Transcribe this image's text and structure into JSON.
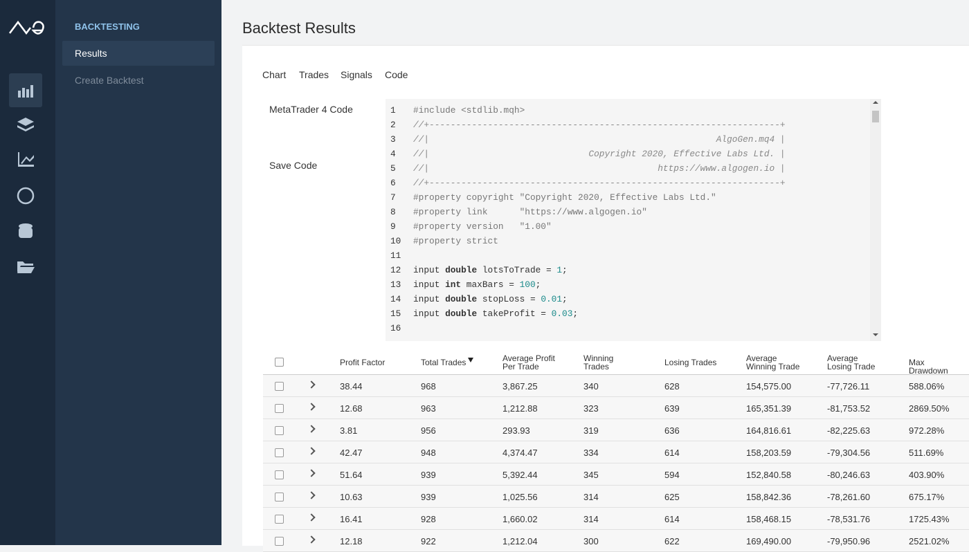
{
  "sidebar": {
    "section": "BACKTESTING",
    "items": [
      "Results",
      "Create Backtest"
    ],
    "active": 0
  },
  "header": {
    "title": "Backtest Results"
  },
  "tabs": {
    "items": [
      "Chart",
      "Trades",
      "Signals",
      "Code"
    ],
    "active": 3
  },
  "side_menu": {
    "items": [
      "MetaTrader 4 Code",
      "Save Code"
    ],
    "active": 0
  },
  "code": {
    "lines": [
      {
        "n": 1,
        "text": "#include <stdlib.mqh>"
      },
      {
        "n": 2,
        "text": "//+------------------------------------------------------------------+"
      },
      {
        "n": 3,
        "text": "//|                                                      AlgoGen.mq4 |"
      },
      {
        "n": 4,
        "text": "//|                              Copyright 2020, Effective Labs Ltd. |"
      },
      {
        "n": 5,
        "text": "//|                                           https://www.algogen.io |"
      },
      {
        "n": 6,
        "text": "//+------------------------------------------------------------------+"
      },
      {
        "n": 7,
        "text": "#property copyright \"Copyright 2020, Effective Labs Ltd.\""
      },
      {
        "n": 8,
        "text": "#property link      \"https://www.algogen.io\""
      },
      {
        "n": 9,
        "text": "#property version   \"1.00\""
      },
      {
        "n": 10,
        "text": "#property strict"
      },
      {
        "n": 11
      },
      {
        "n": 12,
        "text": "input double lotsToTrade = 1;"
      },
      {
        "n": 13,
        "text": "input int maxBars = 100;"
      },
      {
        "n": 14,
        "text": "input double stopLoss = 0.01;"
      },
      {
        "n": 15,
        "text": "input double takeProfit = 0.03;"
      },
      {
        "n": 16
      }
    ]
  },
  "table": {
    "columns": [
      "Profit Factor",
      "Total Trades",
      "Average Profit Per Trade",
      "Winning Trades",
      "Losing Trades",
      "Average Winning Trade",
      "Average Losing Trade",
      "Max Drawdown"
    ],
    "sorted_column": 1,
    "rows": [
      [
        "38.44",
        "968",
        "3,867.25",
        "340",
        "628",
        "154,575.00",
        "-77,726.11",
        "588.06%"
      ],
      [
        "12.68",
        "963",
        "1,212.88",
        "323",
        "639",
        "165,351.39",
        "-81,753.52",
        "2869.50%"
      ],
      [
        "3.81",
        "956",
        "293.93",
        "319",
        "636",
        "164,816.61",
        "-82,225.63",
        "972.28%"
      ],
      [
        "42.47",
        "948",
        "4,374.47",
        "334",
        "614",
        "158,203.59",
        "-79,304.56",
        "511.69%"
      ],
      [
        "51.64",
        "939",
        "5,392.44",
        "345",
        "594",
        "152,840.58",
        "-80,246.63",
        "403.90%"
      ],
      [
        "10.63",
        "939",
        "1,025.56",
        "314",
        "625",
        "158,842.36",
        "-78,261.60",
        "675.17%"
      ],
      [
        "16.41",
        "928",
        "1,660.02",
        "314",
        "614",
        "158,468.15",
        "-78,531.76",
        "1725.43%"
      ],
      [
        "12.18",
        "922",
        "1,212.04",
        "300",
        "622",
        "169,490.00",
        "-79,950.96",
        "2521.02%"
      ]
    ]
  }
}
